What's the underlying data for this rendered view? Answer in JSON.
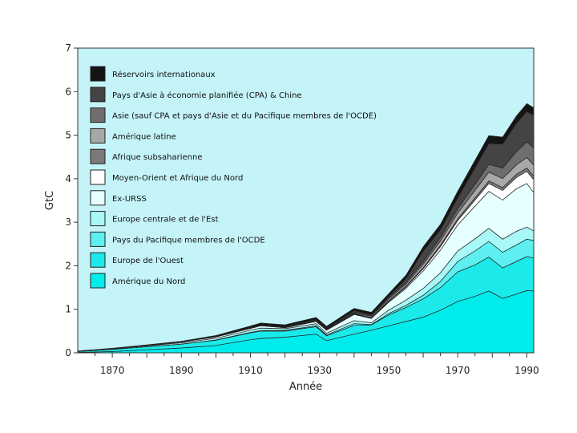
{
  "chart_data": {
    "type": "area",
    "stacked": true,
    "title": "",
    "xlabel": "Année",
    "ylabel": "GtC",
    "xlim": [
      1860,
      1992
    ],
    "ylim": [
      0,
      7
    ],
    "xticks": [
      1870,
      1890,
      1910,
      1930,
      1950,
      1970,
      1990
    ],
    "yticks": [
      0,
      1,
      2,
      3,
      4,
      5,
      6,
      7
    ],
    "grid": false,
    "legend_position": "top-left",
    "plot_background": "#c4f3f8",
    "x": [
      1860,
      1870,
      1880,
      1890,
      1900,
      1910,
      1913,
      1920,
      1929,
      1932,
      1940,
      1945,
      1950,
      1955,
      1960,
      1965,
      1970,
      1975,
      1979,
      1983,
      1987,
      1990,
      1992
    ],
    "series": [
      {
        "name": "Amérique du Nord",
        "color": "#00ecec",
        "values": [
          0.01,
          0.03,
          0.07,
          0.11,
          0.17,
          0.3,
          0.33,
          0.36,
          0.43,
          0.28,
          0.43,
          0.52,
          0.62,
          0.72,
          0.82,
          0.98,
          1.18,
          1.3,
          1.42,
          1.25,
          1.35,
          1.43,
          1.42
        ]
      },
      {
        "name": "Europe de l'Ouest",
        "color": "#1ceaea",
        "values": [
          0.02,
          0.05,
          0.07,
          0.09,
          0.12,
          0.16,
          0.17,
          0.14,
          0.17,
          0.11,
          0.2,
          0.12,
          0.25,
          0.32,
          0.42,
          0.52,
          0.68,
          0.72,
          0.78,
          0.7,
          0.75,
          0.78,
          0.76
        ]
      },
      {
        "name": "Pays du Pacifique membres de l'OCDE",
        "color": "#5ef0f0",
        "values": [
          0.0,
          0.0,
          0.0,
          0.0,
          0.005,
          0.01,
          0.01,
          0.015,
          0.02,
          0.02,
          0.04,
          0.01,
          0.03,
          0.05,
          0.08,
          0.14,
          0.24,
          0.32,
          0.36,
          0.36,
          0.38,
          0.4,
          0.4
        ]
      },
      {
        "name": "Europe centrale et de l'Est",
        "color": "#a8f8f8",
        "values": [
          0.005,
          0.01,
          0.02,
          0.03,
          0.04,
          0.05,
          0.06,
          0.04,
          0.05,
          0.04,
          0.07,
          0.04,
          0.08,
          0.12,
          0.16,
          0.2,
          0.24,
          0.28,
          0.3,
          0.3,
          0.31,
          0.28,
          0.22
        ]
      },
      {
        "name": "Ex-URSS",
        "color": "#e6ffff",
        "values": [
          0.002,
          0.005,
          0.01,
          0.02,
          0.03,
          0.04,
          0.05,
          0.02,
          0.05,
          0.07,
          0.14,
          0.1,
          0.18,
          0.27,
          0.4,
          0.52,
          0.6,
          0.75,
          0.85,
          0.9,
          0.98,
          1.0,
          0.88
        ]
      },
      {
        "name": "Moyen-Orient et Afrique du Nord",
        "color": "#ffffff",
        "values": [
          0.0,
          0.0,
          0.0,
          0.0,
          0.0,
          0.002,
          0.002,
          0.004,
          0.006,
          0.006,
          0.01,
          0.01,
          0.02,
          0.03,
          0.05,
          0.08,
          0.1,
          0.14,
          0.18,
          0.22,
          0.26,
          0.28,
          0.3
        ]
      },
      {
        "name": "Afrique subsaharienne",
        "color": "#7a7a7a",
        "values": [
          0.0,
          0.0,
          0.0,
          0.0,
          0.001,
          0.002,
          0.003,
          0.004,
          0.006,
          0.006,
          0.01,
          0.01,
          0.015,
          0.02,
          0.025,
          0.03,
          0.04,
          0.05,
          0.06,
          0.065,
          0.07,
          0.075,
          0.08
        ]
      },
      {
        "name": "Amérique latine",
        "color": "#a8a8a8",
        "values": [
          0.0,
          0.0,
          0.0,
          0.0,
          0.003,
          0.006,
          0.008,
          0.01,
          0.015,
          0.015,
          0.02,
          0.03,
          0.04,
          0.05,
          0.08,
          0.1,
          0.13,
          0.17,
          0.2,
          0.21,
          0.22,
          0.24,
          0.25
        ]
      },
      {
        "name": "Asie (sauf CPA et pays d'Asie et du Pacifique membres de l'OCDE)",
        "color": "#6e6e6e",
        "values": [
          0.0,
          0.0,
          0.0,
          0.0,
          0.005,
          0.01,
          0.01,
          0.012,
          0.015,
          0.015,
          0.02,
          0.02,
          0.03,
          0.04,
          0.06,
          0.08,
          0.1,
          0.14,
          0.18,
          0.24,
          0.3,
          0.36,
          0.4
        ]
      },
      {
        "name": "Pays d'Asie à économie planifiée (CPA) & Chine",
        "color": "#444444",
        "values": [
          0.0,
          0.0,
          0.0,
          0.0,
          0.002,
          0.005,
          0.006,
          0.008,
          0.01,
          0.01,
          0.03,
          0.02,
          0.03,
          0.08,
          0.24,
          0.18,
          0.25,
          0.38,
          0.48,
          0.55,
          0.65,
          0.7,
          0.74
        ]
      },
      {
        "name": "Réservoirs internationaux",
        "color": "#141414",
        "values": [
          0.005,
          0.008,
          0.012,
          0.016,
          0.02,
          0.03,
          0.035,
          0.03,
          0.04,
          0.035,
          0.05,
          0.05,
          0.06,
          0.08,
          0.1,
          0.12,
          0.15,
          0.17,
          0.18,
          0.16,
          0.17,
          0.18,
          0.18
        ]
      }
    ]
  },
  "legend_order": [
    10,
    9,
    8,
    7,
    6,
    5,
    4,
    3,
    2,
    1,
    0
  ]
}
